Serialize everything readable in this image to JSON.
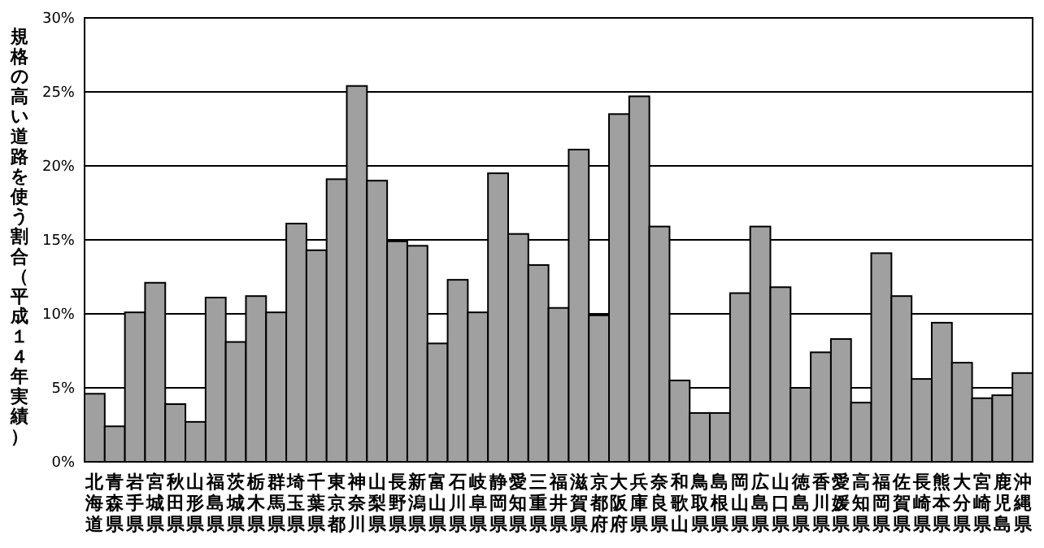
{
  "chart_data": {
    "type": "bar",
    "ylabel": "規格の高い道路を使う割合（平成１４年実績）",
    "categories": [
      "北海道",
      "青森県",
      "岩手県",
      "宮城県",
      "秋田県",
      "山形県",
      "福島県",
      "茨城県",
      "栃木県",
      "群馬県",
      "埼玉県",
      "千葉県",
      "東京都",
      "神奈川",
      "山梨県",
      "長野県",
      "新潟県",
      "富山県",
      "石川県",
      "岐阜県",
      "静岡県",
      "愛知県",
      "三重県",
      "福井県",
      "滋賀県",
      "京都府",
      "大阪府",
      "兵庫県",
      "奈良県",
      "和歌山",
      "鳥取県",
      "島根県",
      "岡山県",
      "広島県",
      "山口県",
      "徳島県",
      "香川県",
      "愛媛県",
      "高知県",
      "福岡県",
      "佐賀県",
      "長崎県",
      "熊本県",
      "大分県",
      "宮崎県",
      "鹿児島",
      "沖縄県"
    ],
    "values": [
      4.6,
      2.4,
      10.1,
      12.1,
      3.9,
      2.7,
      11.1,
      8.1,
      11.2,
      10.1,
      16.1,
      14.3,
      19.1,
      25.4,
      19.0,
      14.9,
      14.6,
      8.0,
      12.3,
      10.1,
      19.5,
      15.4,
      13.3,
      10.4,
      21.1,
      9.9,
      23.5,
      24.7,
      15.9,
      5.5,
      3.3,
      3.3,
      11.4,
      15.9,
      11.8,
      5.0,
      7.4,
      8.3,
      4.0,
      14.1,
      11.2,
      5.6,
      9.4,
      6.7,
      4.3,
      4.5,
      6.0
    ],
    "color": "#a0a0a0",
    "ylim": [
      0,
      30
    ],
    "yticks": [
      {
        "value": 0,
        "label": "0%"
      },
      {
        "value": 5,
        "label": "5%"
      },
      {
        "value": 10,
        "label": "10%"
      },
      {
        "value": 15,
        "label": "15%"
      },
      {
        "value": 20,
        "label": "20%"
      },
      {
        "value": 25,
        "label": "25%"
      },
      {
        "value": 30,
        "label": "30%"
      }
    ],
    "grid": "y"
  }
}
